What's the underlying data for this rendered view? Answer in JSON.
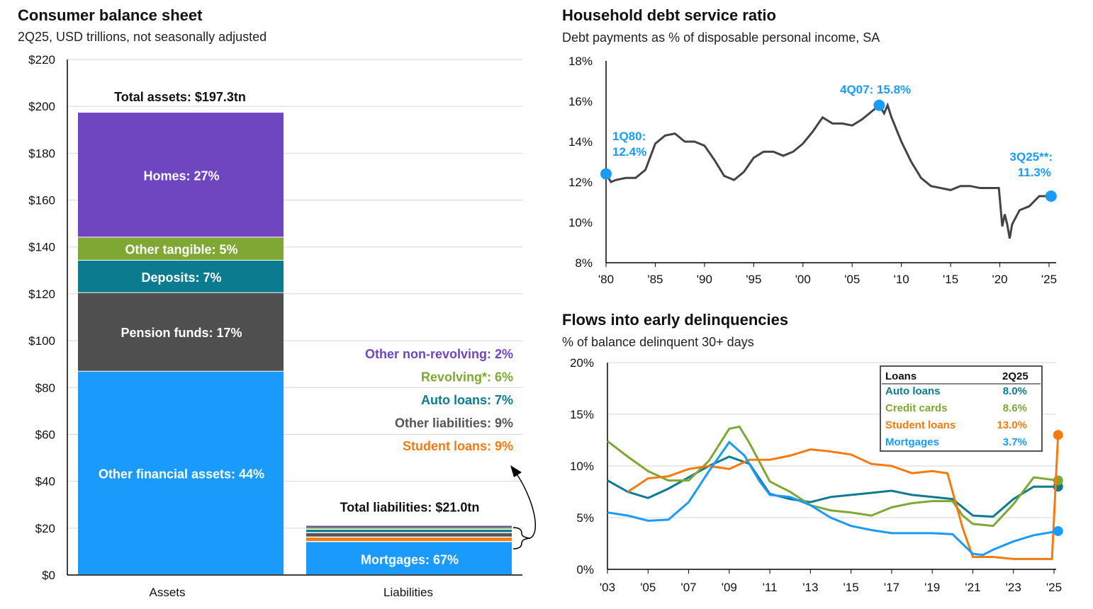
{
  "chart_data": [
    {
      "type": "stacked-bar",
      "title": "Consumer balance sheet",
      "subtitle": "2Q25, USD trillions, not seasonally adjusted",
      "ylim": [
        0,
        220
      ],
      "yticks": [
        "$0",
        "$20",
        "$40",
        "$60",
        "$80",
        "$100",
        "$120",
        "$140",
        "$160",
        "$180",
        "$200",
        "$220"
      ],
      "categories": [
        "Assets",
        "Liabilities"
      ],
      "assets_total_label": "Total assets: $197.3tn",
      "assets_total": 197.3,
      "liabilities_total_label": "Total liabilities: $21.0tn",
      "liabilities_total": 21.0,
      "assets": [
        {
          "name": "Other financial assets",
          "pct": 44,
          "label": "Other financial assets: 44%",
          "color": "#1a9bfc"
        },
        {
          "name": "Pension funds",
          "pct": 17,
          "label": "Pension funds: 17%",
          "color": "#4f4f4f"
        },
        {
          "name": "Deposits",
          "pct": 7,
          "label": "Deposits: 7%",
          "color": "#0b7b8f"
        },
        {
          "name": "Other tangible",
          "pct": 5,
          "label": "Other tangible: 5%",
          "color": "#7ea733"
        },
        {
          "name": "Homes",
          "pct": 27,
          "label": "Homes: 27%",
          "color": "#6f45c0"
        }
      ],
      "liabilities": [
        {
          "name": "Mortgages",
          "pct": 67,
          "label": "Mortgages: 67%",
          "color": "#1a9bfc"
        },
        {
          "name": "Student loans",
          "pct": 9,
          "label": "Student loans: 9%",
          "color": "#f57b10"
        },
        {
          "name": "Other liabilities",
          "pct": 9,
          "label": "Other liabilities: 9%",
          "color": "#555555"
        },
        {
          "name": "Auto loans",
          "pct": 7,
          "label": "Auto loans: 7%",
          "color": "#0b7b8f"
        },
        {
          "name": "Revolving*",
          "pct": 6,
          "label": "Revolving*: 6%",
          "color": "#7ea733"
        },
        {
          "name": "Other non-revolving",
          "pct": 2,
          "label": "Other non-revolving: 2%",
          "color": "#6f45c0"
        }
      ]
    },
    {
      "type": "line",
      "title": "Household debt service ratio",
      "subtitle": "Debt payments as % of disposable personal income, SA",
      "ylim": [
        8,
        18
      ],
      "xlim": [
        1980,
        2025.5
      ],
      "yticks": [
        "8%",
        "10%",
        "12%",
        "14%",
        "16%",
        "18%"
      ],
      "xticks": [
        [
          "'80",
          1980
        ],
        [
          "'85",
          1985
        ],
        [
          "'90",
          1990
        ],
        [
          "'95",
          1995
        ],
        [
          "'00",
          2000
        ],
        [
          "'05",
          2005
        ],
        [
          "'10",
          2010
        ],
        [
          "'15",
          2015
        ],
        [
          "'20",
          2020
        ],
        [
          "'25",
          2025
        ]
      ],
      "color": "#444444",
      "marker_color": "#1a9bfc",
      "annotations": [
        {
          "label1": "1Q80:",
          "label2": "12.4%",
          "x": 1980,
          "y": 12.4
        },
        {
          "label1": "4Q07:  15.8%",
          "x": 2007.75,
          "y": 15.8
        },
        {
          "label1": "3Q25**:",
          "label2": "11.3%",
          "x": 2025.2,
          "y": 11.3
        }
      ],
      "x": [
        1980,
        1980.5,
        1981,
        1982,
        1983,
        1984,
        1985,
        1986,
        1987,
        1988,
        1989,
        1990,
        1991,
        1992,
        1993,
        1994,
        1995,
        1996,
        1997,
        1998,
        1999,
        2000,
        2001,
        2002,
        2003,
        2004,
        2005,
        2006,
        2007,
        2007.75,
        2008.25,
        2008.6,
        2009,
        2010,
        2011,
        2012,
        2013,
        2014,
        2015,
        2016,
        2017,
        2018,
        2019,
        2019.9,
        2020.25,
        2020.5,
        2020.75,
        2021,
        2021.25,
        2022,
        2023,
        2024,
        2025.2
      ],
      "y": [
        12.4,
        12.0,
        12.1,
        12.2,
        12.2,
        12.6,
        13.9,
        14.3,
        14.4,
        14.0,
        14.0,
        13.8,
        13.1,
        12.3,
        12.1,
        12.5,
        13.2,
        13.5,
        13.5,
        13.3,
        13.5,
        13.9,
        14.5,
        15.2,
        14.9,
        14.9,
        14.8,
        15.1,
        15.5,
        15.8,
        15.4,
        15.8,
        15.2,
        14.0,
        13.0,
        12.2,
        11.8,
        11.7,
        11.6,
        11.8,
        11.8,
        11.7,
        11.7,
        11.7,
        9.8,
        10.4,
        9.9,
        9.2,
        9.9,
        10.6,
        10.8,
        11.3,
        11.3
      ]
    },
    {
      "type": "line",
      "title": "Flows into early delinquencies",
      "subtitle": "% of balance delinquent 30+ days",
      "ylim": [
        0,
        20
      ],
      "xlim": [
        2003,
        2025.3
      ],
      "yticks": [
        "0%",
        "5%",
        "10%",
        "15%",
        "20%"
      ],
      "xticks": [
        [
          "'03",
          2003
        ],
        [
          "'05",
          2005
        ],
        [
          "'07",
          2007
        ],
        [
          "'09",
          2009
        ],
        [
          "'11",
          2011
        ],
        [
          "'13",
          2013
        ],
        [
          "'15",
          2015
        ],
        [
          "'17",
          2017
        ],
        [
          "'19",
          2019
        ],
        [
          "'21",
          2021
        ],
        [
          "'23",
          2023
        ],
        [
          "'25",
          2025
        ]
      ],
      "legend": {
        "header": [
          "Loans",
          "2Q25"
        ],
        "placement": "top-right"
      },
      "series": [
        {
          "name": "Auto loans",
          "latest": "8.0%",
          "color": "#0b7b8f",
          "x": [
            2003,
            2004,
            2005,
            2006,
            2007,
            2008,
            2009,
            2010,
            2011,
            2012,
            2013,
            2014,
            2015,
            2016,
            2017,
            2018,
            2019,
            2020,
            2021,
            2022,
            2023,
            2024,
            2025.2
          ],
          "y": [
            8.6,
            7.5,
            6.9,
            7.8,
            8.9,
            10,
            10.9,
            10.2,
            7.3,
            6.8,
            6.5,
            7,
            7.2,
            7.4,
            7.6,
            7.2,
            7.0,
            6.8,
            5.2,
            5.1,
            6.8,
            8,
            8.0
          ]
        },
        {
          "name": "Credit cards",
          "latest": "8.6%",
          "color": "#7ea733",
          "x": [
            2003,
            2004,
            2005,
            2006,
            2007,
            2008,
            2009,
            2009.5,
            2010,
            2011,
            2012,
            2013,
            2014,
            2015,
            2016,
            2017,
            2018,
            2019,
            2020,
            2020.5,
            2021,
            2022,
            2023,
            2024,
            2025.2
          ],
          "y": [
            12.4,
            10.9,
            9.5,
            8.6,
            8.6,
            10.5,
            13.6,
            13.8,
            12.2,
            8.5,
            7.5,
            6.2,
            5.7,
            5.5,
            5.2,
            6.0,
            6.4,
            6.6,
            6.6,
            5.2,
            4.4,
            4.2,
            6.3,
            8.9,
            8.6
          ]
        },
        {
          "name": "Student loans",
          "latest": "13.0%",
          "color": "#f57b10",
          "x": [
            2004,
            2005,
            2006,
            2007,
            2008,
            2009,
            2010,
            2011,
            2012,
            2013,
            2014,
            2015,
            2016,
            2017,
            2018,
            2019,
            2019.75,
            2020.5,
            2021,
            2022,
            2023,
            2024,
            2024.9,
            2025.2
          ],
          "y": [
            7.5,
            8.8,
            9.0,
            9.7,
            10.0,
            9.7,
            10.6,
            10.6,
            11,
            11.6,
            11.4,
            11.1,
            10.2,
            10.0,
            9.3,
            9.5,
            9.3,
            4,
            1.2,
            1.2,
            1.0,
            1.0,
            1.0,
            13.0
          ]
        },
        {
          "name": "Mortgages",
          "latest": "3.7%",
          "color": "#1a9bfc",
          "x": [
            2003,
            2004,
            2005,
            2006,
            2007,
            2008,
            2009,
            2009.75,
            2010.5,
            2011,
            2012,
            2013,
            2014,
            2015,
            2016,
            2017,
            2018,
            2019,
            2020,
            2021,
            2021.5,
            2022,
            2023,
            2024,
            2025.2
          ],
          "y": [
            5.5,
            5.2,
            4.7,
            4.8,
            6.5,
            9.5,
            12.3,
            11,
            8.5,
            7.2,
            7.0,
            6.2,
            5.0,
            4.2,
            3.8,
            3.5,
            3.5,
            3.5,
            3.4,
            1.5,
            1.4,
            1.9,
            2.7,
            3.3,
            3.7
          ]
        }
      ]
    }
  ]
}
